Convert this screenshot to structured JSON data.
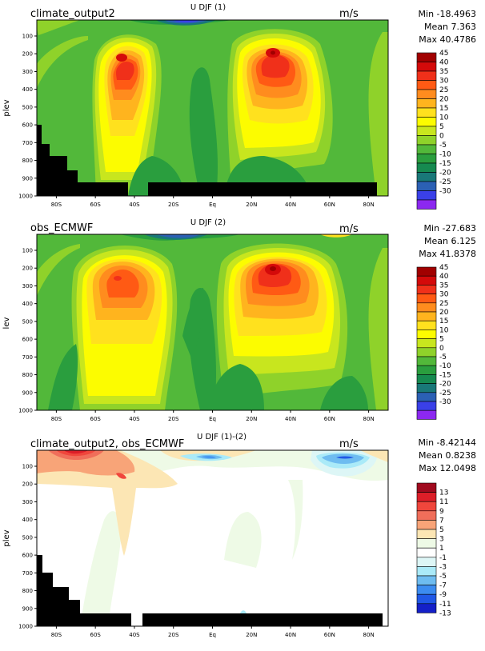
{
  "panels": [
    {
      "title_left": "climate_output2",
      "title_center": "U DJF (1)",
      "units": "m/s",
      "stats": [
        "Min -18.4963",
        "Mean 7.363",
        "Max 40.4786"
      ],
      "ylabel": "plev",
      "xticks": [
        "80S",
        "60S",
        "40S",
        "20S",
        "Eq",
        "20N",
        "40N",
        "60N",
        "80N"
      ],
      "yticks": [
        "100",
        "200",
        "300",
        "400",
        "500",
        "600",
        "700",
        "800",
        "900",
        "1000"
      ],
      "colorbar_labels": [
        "45",
        "40",
        "35",
        "30",
        "25",
        "20",
        "15",
        "10",
        "5",
        "0",
        "-5",
        "-10",
        "-15",
        "-20",
        "-25",
        "-30"
      ],
      "colorbar_colors": [
        "#a10000",
        "#d40a0a",
        "#f0301a",
        "#ff5a14",
        "#ff8c1e",
        "#ffb41e",
        "#ffe11e",
        "#fcfc00",
        "#c8e61e",
        "#8fd22a",
        "#52b83a",
        "#2a9e3e",
        "#168a50",
        "#197878",
        "#2b60b4",
        "#3a40e8",
        "#8c28f0"
      ],
      "chart_data": {
        "type": "heatmap",
        "x_range": [
          "90S",
          "90N"
        ],
        "y_range": [
          1000,
          10
        ],
        "ylim": [
          1000,
          10
        ],
        "levels": [
          -30,
          -25,
          -20,
          -15,
          -10,
          -5,
          0,
          5,
          10,
          15,
          20,
          25,
          30,
          35,
          40,
          45
        ],
        "min": -18.4963,
        "mean": 7.363,
        "max": 40.4786,
        "jets": [
          {
            "lat": -45,
            "plev": 200,
            "value": 40
          },
          {
            "lat": 30,
            "plev": 200,
            "value": 40
          }
        ]
      }
    },
    {
      "title_left": "obs_ECMWF",
      "title_center": "U DJF (2)",
      "units": "m/s",
      "stats": [
        "Min -27.683",
        "Mean 6.125",
        "Max 41.8378"
      ],
      "ylabel": "lev",
      "xticks": [
        "80S",
        "60S",
        "40S",
        "20S",
        "Eq",
        "20N",
        "40N",
        "60N",
        "80N"
      ],
      "yticks": [
        "100",
        "200",
        "300",
        "400",
        "500",
        "600",
        "700",
        "800",
        "900",
        "1000"
      ],
      "colorbar_labels": [
        "45",
        "40",
        "35",
        "30",
        "25",
        "20",
        "15",
        "10",
        "5",
        "0",
        "-5",
        "-10",
        "-15",
        "-20",
        "-25",
        "-30"
      ],
      "colorbar_colors": [
        "#a10000",
        "#d40a0a",
        "#f0301a",
        "#ff5a14",
        "#ff8c1e",
        "#ffb41e",
        "#ffe11e",
        "#fcfc00",
        "#c8e61e",
        "#8fd22a",
        "#52b83a",
        "#2a9e3e",
        "#168a50",
        "#197878",
        "#2b60b4",
        "#3a40e8",
        "#8c28f0"
      ],
      "chart_data": {
        "type": "heatmap",
        "x_range": [
          "90S",
          "90N"
        ],
        "y_range": [
          1000,
          10
        ],
        "ylim": [
          1000,
          10
        ],
        "levels": [
          -30,
          -25,
          -20,
          -15,
          -10,
          -5,
          0,
          5,
          10,
          15,
          20,
          25,
          30,
          35,
          40,
          45
        ],
        "min": -27.683,
        "mean": 6.125,
        "max": 41.8378,
        "jets": [
          {
            "lat": -45,
            "plev": 250,
            "value": 35
          },
          {
            "lat": 30,
            "plev": 200,
            "value": 40
          }
        ]
      }
    },
    {
      "title_left": "climate_output2, obs_ECMWF",
      "title_center": "U DJF (1)-(2)",
      "units": "m/s",
      "stats": [
        "Min -8.42144",
        "Mean 0.8238",
        "Max 12.0498"
      ],
      "ylabel": "plev",
      "xticks": [
        "80S",
        "60S",
        "40S",
        "20S",
        "Eq",
        "20N",
        "40N",
        "60N",
        "80N"
      ],
      "yticks": [
        "100",
        "200",
        "300",
        "400",
        "500",
        "600",
        "700",
        "800",
        "900",
        "1000"
      ],
      "colorbar_labels": [
        "13",
        "11",
        "9",
        "7",
        "5",
        "3",
        "1",
        "-1",
        "-3",
        "-5",
        "-7",
        "-9",
        "-11",
        "-13"
      ],
      "colorbar_colors": [
        "#a00a1e",
        "#dc1e28",
        "#f0463c",
        "#f06e5a",
        "#f8a478",
        "#fce6b4",
        "#eefae6",
        "#ffffff",
        "#ddf6f6",
        "#aaeaf8",
        "#6ebcf0",
        "#3c8cf0",
        "#2058e6",
        "#1420c8"
      ],
      "chart_data": {
        "type": "heatmap",
        "x_range": [
          "90S",
          "90N"
        ],
        "y_range": [
          1000,
          10
        ],
        "ylim": [
          1000,
          10
        ],
        "levels": [
          -13,
          -11,
          -9,
          -7,
          -5,
          -3,
          -1,
          1,
          3,
          5,
          7,
          9,
          11,
          13
        ],
        "min": -8.42144,
        "mean": 0.8238,
        "max": 12.0498
      }
    }
  ]
}
